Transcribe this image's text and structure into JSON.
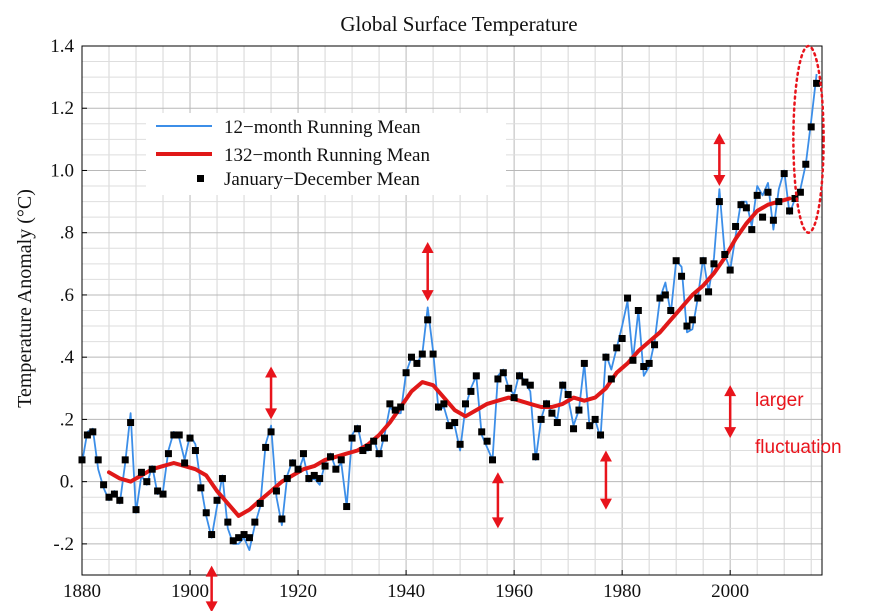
{
  "chart_data": {
    "type": "line",
    "title": "Global Surface Temperature",
    "xlabel": "",
    "ylabel": "Temperature Anomaly (°C)",
    "xlim": [
      1880,
      2017
    ],
    "ylim": [
      -0.3,
      1.4
    ],
    "x_ticks": [
      1880,
      1900,
      1920,
      1940,
      1960,
      1980,
      2000
    ],
    "x_tick_labels": [
      "1880",
      "1900",
      "1920",
      "1940",
      "1960",
      "1980",
      "2000"
    ],
    "y_ticks": [
      -0.2,
      0.0,
      0.2,
      0.4,
      0.6,
      0.8,
      1.0,
      1.2,
      1.4
    ],
    "y_tick_labels": [
      "-.2",
      "0.",
      ".2",
      ".4",
      ".6",
      ".8",
      "1.0",
      "1.2",
      "1.4"
    ],
    "grid": true,
    "legend_position": "top-left",
    "colors": {
      "monthly": "#3c8ee8",
      "running132": "#e01818",
      "annual": "#000000",
      "annotation": "#e8141c"
    },
    "series": [
      {
        "name": "12−month Running Mean",
        "style": "line",
        "x": [
          1880,
          1881,
          1882,
          1883,
          1884,
          1885,
          1886,
          1887,
          1888,
          1889,
          1890,
          1891,
          1892,
          1893,
          1894,
          1895,
          1896,
          1897,
          1898,
          1899,
          1900,
          1901,
          1902,
          1903,
          1904,
          1905,
          1906,
          1907,
          1908,
          1909,
          1910,
          1911,
          1912,
          1913,
          1914,
          1915,
          1916,
          1917,
          1918,
          1919,
          1920,
          1921,
          1922,
          1923,
          1924,
          1925,
          1926,
          1927,
          1928,
          1929,
          1930,
          1931,
          1932,
          1933,
          1934,
          1935,
          1936,
          1937,
          1938,
          1939,
          1940,
          1941,
          1942,
          1943,
          1944,
          1945,
          1946,
          1947,
          1948,
          1949,
          1950,
          1951,
          1952,
          1953,
          1954,
          1955,
          1956,
          1957,
          1958,
          1959,
          1960,
          1961,
          1962,
          1963,
          1964,
          1965,
          1966,
          1967,
          1968,
          1969,
          1970,
          1971,
          1972,
          1973,
          1974,
          1975,
          1976,
          1977,
          1978,
          1979,
          1980,
          1981,
          1982,
          1983,
          1984,
          1985,
          1986,
          1987,
          1988,
          1989,
          1990,
          1991,
          1992,
          1993,
          1994,
          1995,
          1996,
          1997,
          1998,
          1999,
          2000,
          2001,
          2002,
          2003,
          2004,
          2005,
          2006,
          2007,
          2008,
          2009,
          2010,
          2011,
          2012,
          2013,
          2014,
          2015,
          2016
        ],
        "y": [
          0.06,
          0.16,
          0.17,
          0.04,
          -0.02,
          -0.06,
          -0.03,
          -0.07,
          0.06,
          0.22,
          -0.1,
          0.02,
          -0.01,
          0.05,
          -0.04,
          -0.03,
          0.1,
          0.16,
          0.14,
          0.07,
          0.15,
          0.12,
          -0.01,
          -0.11,
          -0.18,
          -0.08,
          0.02,
          -0.15,
          -0.2,
          -0.2,
          -0.18,
          -0.22,
          -0.14,
          -0.08,
          0.12,
          0.18,
          -0.05,
          -0.14,
          0.02,
          0.07,
          0.03,
          0.08,
          0.0,
          0.01,
          -0.01,
          0.06,
          0.09,
          0.04,
          0.06,
          -0.08,
          0.15,
          0.18,
          0.1,
          0.1,
          0.14,
          0.08,
          0.15,
          0.24,
          0.22,
          0.22,
          0.35,
          0.4,
          0.38,
          0.41,
          0.56,
          0.42,
          0.23,
          0.24,
          0.18,
          0.18,
          0.1,
          0.24,
          0.3,
          0.34,
          0.15,
          0.11,
          0.07,
          0.34,
          0.36,
          0.3,
          0.28,
          0.35,
          0.32,
          0.29,
          0.07,
          0.2,
          0.26,
          0.22,
          0.2,
          0.32,
          0.27,
          0.18,
          0.23,
          0.38,
          0.17,
          0.2,
          0.14,
          0.41,
          0.36,
          0.43,
          0.5,
          0.58,
          0.39,
          0.55,
          0.34,
          0.37,
          0.45,
          0.59,
          0.64,
          0.54,
          0.71,
          0.69,
          0.48,
          0.49,
          0.59,
          0.72,
          0.61,
          0.72,
          0.94,
          0.73,
          0.68,
          0.79,
          0.9,
          0.9,
          0.82,
          0.95,
          0.92,
          0.96,
          0.81,
          0.94,
          1.0,
          0.86,
          0.91,
          0.94,
          1.02,
          1.16,
          1.31
        ]
      },
      {
        "name": "132−month Running Mean",
        "style": "line",
        "x": [
          1885,
          1887,
          1889,
          1891,
          1893,
          1895,
          1897,
          1899,
          1901,
          1903,
          1905,
          1907,
          1909,
          1911,
          1913,
          1915,
          1917,
          1919,
          1921,
          1923,
          1925,
          1927,
          1929,
          1931,
          1933,
          1935,
          1937,
          1939,
          1941,
          1943,
          1945,
          1947,
          1949,
          1951,
          1953,
          1955,
          1957,
          1959,
          1961,
          1963,
          1965,
          1967,
          1969,
          1971,
          1973,
          1975,
          1977,
          1979,
          1981,
          1983,
          1985,
          1987,
          1989,
          1991,
          1993,
          1995,
          1997,
          1999,
          2001,
          2003,
          2005,
          2007,
          2009,
          2011
        ],
        "y": [
          0.03,
          0.01,
          0.0,
          0.02,
          0.04,
          0.05,
          0.06,
          0.05,
          0.04,
          0.02,
          -0.03,
          -0.07,
          -0.11,
          -0.09,
          -0.06,
          -0.03,
          0.0,
          0.02,
          0.04,
          0.05,
          0.07,
          0.08,
          0.09,
          0.1,
          0.12,
          0.15,
          0.19,
          0.24,
          0.29,
          0.32,
          0.31,
          0.27,
          0.23,
          0.21,
          0.23,
          0.25,
          0.26,
          0.27,
          0.26,
          0.25,
          0.24,
          0.24,
          0.25,
          0.27,
          0.26,
          0.27,
          0.3,
          0.35,
          0.38,
          0.42,
          0.45,
          0.48,
          0.52,
          0.56,
          0.6,
          0.63,
          0.67,
          0.72,
          0.78,
          0.83,
          0.87,
          0.89,
          0.9,
          0.91
        ]
      },
      {
        "name": "January−December Mean",
        "style": "markers",
        "x": [
          1880,
          1881,
          1882,
          1883,
          1884,
          1885,
          1886,
          1887,
          1888,
          1889,
          1890,
          1891,
          1892,
          1893,
          1894,
          1895,
          1896,
          1897,
          1898,
          1899,
          1900,
          1901,
          1902,
          1903,
          1904,
          1905,
          1906,
          1907,
          1908,
          1909,
          1910,
          1911,
          1912,
          1913,
          1914,
          1915,
          1916,
          1917,
          1918,
          1919,
          1920,
          1921,
          1922,
          1923,
          1924,
          1925,
          1926,
          1927,
          1928,
          1929,
          1930,
          1931,
          1932,
          1933,
          1934,
          1935,
          1936,
          1937,
          1938,
          1939,
          1940,
          1941,
          1942,
          1943,
          1944,
          1945,
          1946,
          1947,
          1948,
          1949,
          1950,
          1951,
          1952,
          1953,
          1954,
          1955,
          1956,
          1957,
          1958,
          1959,
          1960,
          1961,
          1962,
          1963,
          1964,
          1965,
          1966,
          1967,
          1968,
          1969,
          1970,
          1971,
          1972,
          1973,
          1974,
          1975,
          1976,
          1977,
          1978,
          1979,
          1980,
          1981,
          1982,
          1983,
          1984,
          1985,
          1986,
          1987,
          1988,
          1989,
          1990,
          1991,
          1992,
          1993,
          1994,
          1995,
          1996,
          1997,
          1998,
          1999,
          2000,
          2001,
          2002,
          2003,
          2004,
          2005,
          2006,
          2007,
          2008,
          2009,
          2010,
          2011,
          2012,
          2013,
          2014,
          2015,
          2016
        ],
        "y": [
          0.07,
          0.15,
          0.16,
          0.07,
          -0.01,
          -0.05,
          -0.04,
          -0.06,
          0.07,
          0.19,
          -0.09,
          0.03,
          0.0,
          0.04,
          -0.03,
          -0.04,
          0.09,
          0.15,
          0.15,
          0.06,
          0.14,
          0.1,
          -0.02,
          -0.1,
          -0.17,
          -0.06,
          0.01,
          -0.13,
          -0.19,
          -0.18,
          -0.17,
          -0.18,
          -0.13,
          -0.07,
          0.11,
          0.16,
          -0.03,
          -0.12,
          0.01,
          0.06,
          0.04,
          0.09,
          0.01,
          0.02,
          0.01,
          0.05,
          0.08,
          0.04,
          0.07,
          -0.08,
          0.14,
          0.17,
          0.1,
          0.11,
          0.13,
          0.09,
          0.14,
          0.25,
          0.23,
          0.24,
          0.35,
          0.4,
          0.38,
          0.41,
          0.52,
          0.41,
          0.24,
          0.25,
          0.18,
          0.19,
          0.12,
          0.25,
          0.29,
          0.34,
          0.16,
          0.13,
          0.07,
          0.33,
          0.35,
          0.3,
          0.27,
          0.34,
          0.32,
          0.31,
          0.08,
          0.2,
          0.25,
          0.22,
          0.19,
          0.31,
          0.28,
          0.17,
          0.23,
          0.38,
          0.18,
          0.2,
          0.15,
          0.4,
          0.33,
          0.43,
          0.46,
          0.59,
          0.39,
          0.55,
          0.37,
          0.38,
          0.44,
          0.59,
          0.6,
          0.55,
          0.71,
          0.66,
          0.5,
          0.52,
          0.59,
          0.71,
          0.61,
          0.7,
          0.9,
          0.73,
          0.68,
          0.82,
          0.89,
          0.88,
          0.81,
          0.92,
          0.85,
          0.93,
          0.84,
          0.9,
          0.99,
          0.87,
          0.91,
          0.93,
          1.02,
          1.14,
          1.28
        ]
      }
    ],
    "annotations": {
      "text_line1": "larger",
      "text_line2": "fluctuation",
      "arrows": [
        {
          "x": 1904,
          "y_top": -0.27,
          "y_bottom": -0.42
        },
        {
          "x": 1915,
          "y_top": 0.37,
          "y_bottom": 0.2
        },
        {
          "x": 1944,
          "y_top": 0.77,
          "y_bottom": 0.58
        },
        {
          "x": 1957,
          "y_top": 0.03,
          "y_bottom": -0.15
        },
        {
          "x": 1977,
          "y_top": 0.1,
          "y_bottom": -0.09
        },
        {
          "x": 1998,
          "y_top": 1.12,
          "y_bottom": 0.95
        },
        {
          "x": 2000,
          "y_top": 0.31,
          "y_bottom": 0.14
        }
      ],
      "ellipse": {
        "cx": 2014.5,
        "cy": 1.1,
        "rx": 2.8,
        "ry": 0.3
      }
    }
  }
}
